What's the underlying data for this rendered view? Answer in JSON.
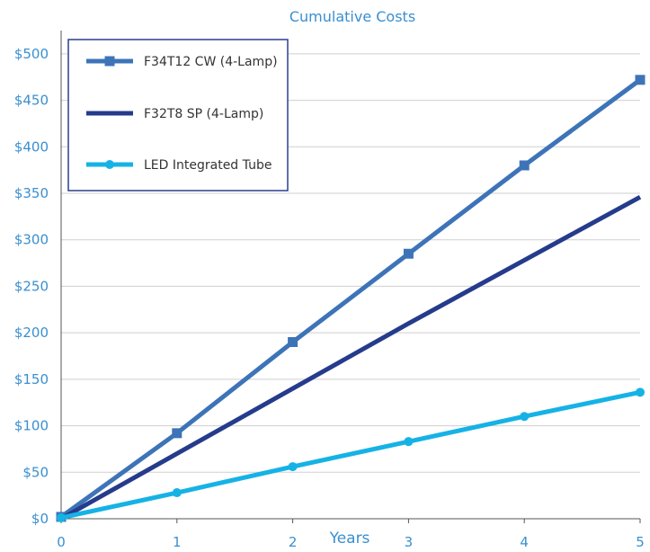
{
  "colors": {
    "title": "#3a8fd0",
    "axis_text": "#3a8fd0",
    "grid": "#cfcfcf",
    "axis": "#555555",
    "legend_border": "#2b3f8f"
  },
  "chart_data": {
    "type": "line",
    "title": "Cumulative Costs",
    "xlabel": "Years",
    "ylabel": "",
    "x": [
      0,
      1,
      2,
      3,
      4,
      5
    ],
    "x_tick_labels": [
      "0",
      "1",
      "2",
      "3",
      "4",
      "5"
    ],
    "xlim": [
      0,
      5
    ],
    "ylim": [
      0,
      525
    ],
    "y_ticks": [
      0,
      50,
      100,
      150,
      200,
      250,
      300,
      350,
      400,
      450,
      500
    ],
    "y_tick_labels": [
      "$0",
      "$50",
      "$100",
      "$150",
      "$200",
      "$250",
      "$300",
      "$350",
      "$400",
      "$450",
      "$500"
    ],
    "grid": true,
    "legend_position": "top-left",
    "series": [
      {
        "name": "F34T12 CW (4-Lamp)",
        "color": "#3d74b8",
        "marker": "square",
        "values": [
          2,
          92,
          190,
          285,
          380,
          472
        ]
      },
      {
        "name": "F32T8 SP (4-Lamp)",
        "color": "#253b8c",
        "marker": "none",
        "values": [
          0,
          70,
          140,
          210,
          278,
          346
        ]
      },
      {
        "name": "LED Integrated Tube",
        "color": "#16b2e6",
        "marker": "circle",
        "values": [
          1,
          28,
          56,
          83,
          110,
          136
        ]
      }
    ]
  }
}
